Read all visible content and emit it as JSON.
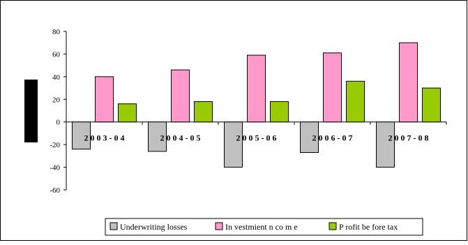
{
  "chart_data": {
    "type": "bar",
    "title": "",
    "xlabel": "",
    "ylabel": "",
    "ylim": [
      -60,
      80
    ],
    "yticks": [
      80,
      60,
      40,
      20,
      0,
      -20,
      -40,
      -60
    ],
    "grid": false,
    "legend_position": "bottom",
    "categories": [
      "2003-04",
      "2004-05",
      "2005-06",
      "2006-07",
      "2007-08"
    ],
    "category_labels": [
      "2 0 0 3 - 0 4",
      "2 0 0 4 - 0 5",
      "2 0 0 5 - 0 6",
      "2 0 0 6 - 0 7",
      "2 0 0 7 - 0 8"
    ],
    "series": [
      {
        "name": "Underwriting losses",
        "color": "#c0c0c0",
        "values": [
          -24,
          -26,
          -40,
          -27,
          -40
        ]
      },
      {
        "name": "In vestmient n co m e",
        "color": "#ff99cc",
        "values": [
          40,
          46,
          59,
          61,
          70
        ]
      },
      {
        "name": "P rofit be fore tax",
        "color": "#99cc00",
        "values": [
          16,
          18,
          18,
          36,
          30
        ]
      }
    ]
  },
  "colors": {
    "background": "#ffffff",
    "frame": "#000000",
    "side_block": "#000000"
  }
}
